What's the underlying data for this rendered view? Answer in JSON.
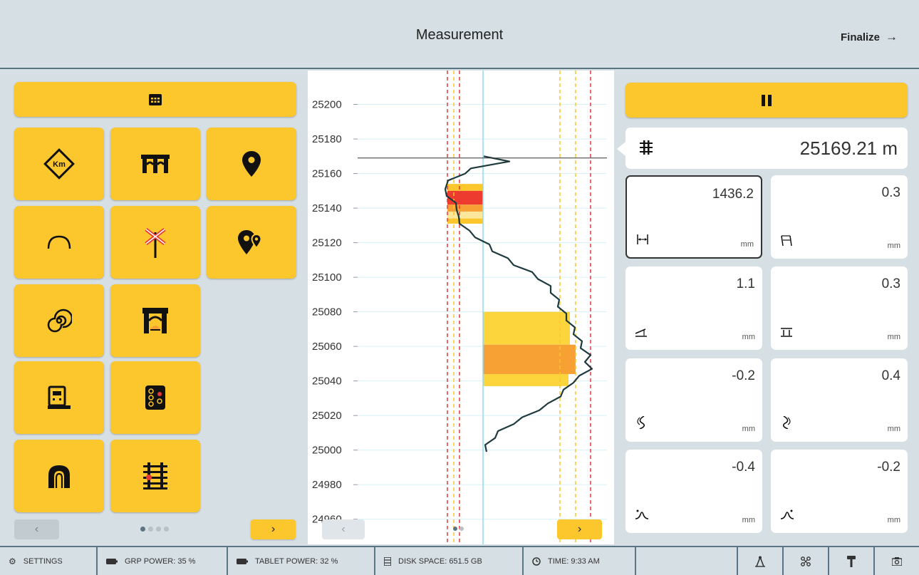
{
  "header": {
    "title": "Measurement",
    "finalize_label": "Finalize",
    "finalize_arrow": "→"
  },
  "left_panel": {
    "top_button_icon": "table-grid-icon",
    "tools": [
      {
        "icon": "kilometer-marker-icon",
        "label": "Km"
      },
      {
        "icon": "bridge-icon"
      },
      {
        "icon": "location-pin-icon"
      },
      {
        "icon": "curve-icon"
      },
      {
        "icon": "level-crossing-icon"
      },
      {
        "icon": "multiple-locations-icon"
      },
      {
        "icon": "spiral-icon"
      },
      {
        "icon": "underpass-icon"
      },
      {
        "icon": "station-platform-icon"
      },
      {
        "icon": "signal-icon"
      },
      {
        "icon": "tunnel-icon"
      },
      {
        "icon": "track-switch-icon"
      }
    ],
    "prev_label": "‹",
    "next_label": "›",
    "page_dots": 4,
    "active_dot": 0
  },
  "chart_data": {
    "type": "line",
    "y_ticks": [
      25200,
      25180,
      25160,
      25140,
      25120,
      25100,
      25080,
      25060,
      25040,
      25020,
      25000,
      24980,
      24960
    ],
    "ylim": [
      24957,
      25206
    ],
    "current_position_marker": 25169,
    "prev_label": "‹",
    "next_label": "›",
    "page_dots": 2,
    "active_dot": 0,
    "colors": {
      "red_limit": "#e53935",
      "yellow_limit": "#fcc62d",
      "center": "#8fdcf0",
      "trace": "#1f3a3d",
      "orange": "#f7a033",
      "red_band": "#ee3b2f"
    }
  },
  "right_panel": {
    "pause_icon": "pause-icon",
    "position": {
      "icon": "track-position-icon",
      "value": "25169.21 m"
    },
    "measurements": [
      {
        "value": "1436.2",
        "unit": "mm",
        "icon": "gauge-icon",
        "selected": true
      },
      {
        "value": "0.3",
        "unit": "mm",
        "icon": "gauge-change-icon",
        "selected": false
      },
      {
        "value": "1.1",
        "unit": "mm",
        "icon": "cant-icon",
        "selected": false
      },
      {
        "value": "0.3",
        "unit": "mm",
        "icon": "twist-icon",
        "selected": false
      },
      {
        "value": "-0.2",
        "unit": "mm",
        "icon": "alignment-left-icon",
        "selected": false
      },
      {
        "value": "0.4",
        "unit": "mm",
        "icon": "alignment-right-icon",
        "selected": false
      },
      {
        "value": "-0.4",
        "unit": "mm",
        "icon": "level-left-icon",
        "selected": false
      },
      {
        "value": "-0.2",
        "unit": "mm",
        "icon": "level-right-icon",
        "selected": false
      }
    ]
  },
  "status_bar": {
    "settings": "SETTINGS",
    "grp_power": "GRP POWER: 35 %",
    "tablet_power": "TABLET POWER: 32 %",
    "disk_space": "DISK SPACE: 651.5 GB",
    "time": "TIME: 9:33 AM",
    "icons": [
      "compass-icon",
      "network-icon",
      "tool-icon",
      "camera-icon"
    ]
  }
}
